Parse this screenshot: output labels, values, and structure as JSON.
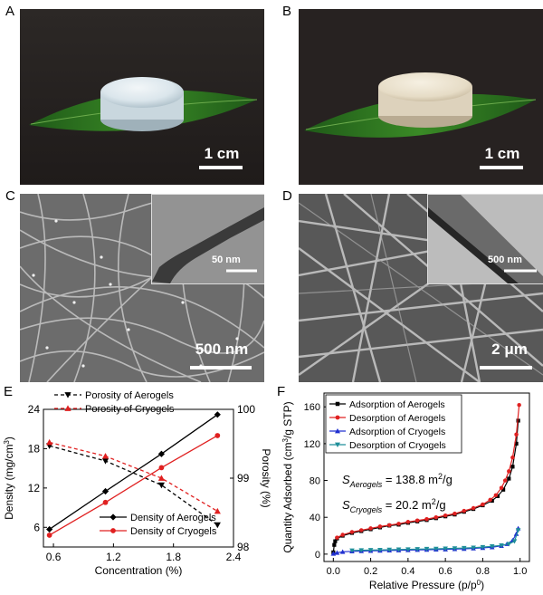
{
  "panels": {
    "A": {
      "letter": "A",
      "scale": "1 cm"
    },
    "B": {
      "letter": "B",
      "scale": "1 cm"
    },
    "C": {
      "letter": "C",
      "scale": "500 nm",
      "inset_scale": "50 nm"
    },
    "D": {
      "letter": "D",
      "scale": "2 μm",
      "inset_scale": "500 nm"
    },
    "E": {
      "letter": "E"
    },
    "F": {
      "letter": "F"
    }
  },
  "chart_data": [
    {
      "type": "line",
      "panel": "E",
      "xlabel": "Concentration (%)",
      "ylabel_left": "Density (mg/cm",
      "ylabel_left_sup": "3",
      "ylabel_left_end": ")",
      "ylabel_right": "Porosity (%)",
      "x_ticks": [
        "0.6",
        "1.2",
        "1.8",
        "2.4"
      ],
      "y_left_ticks": [
        "6",
        "12",
        "18",
        "24"
      ],
      "y_right_ticks": [
        "98",
        "99",
        "100"
      ],
      "xlim": [
        0.5,
        2.4
      ],
      "ylim_left": [
        3,
        24
      ],
      "ylim_right": [
        98,
        100
      ],
      "x": [
        0.56,
        1.12,
        1.68,
        2.24
      ],
      "series": [
        {
          "name": "Porosity of Aerogels",
          "axis": "right",
          "style": "dashed",
          "color": "#000000",
          "marker": "triangle-down",
          "values": [
            99.47,
            99.25,
            98.9,
            98.32
          ]
        },
        {
          "name": "Porosity of Cryogels",
          "axis": "right",
          "style": "dashed",
          "color": "#e02020",
          "marker": "triangle-up",
          "values": [
            99.52,
            99.32,
            99.0,
            98.52
          ]
        },
        {
          "name": "Density of Aerogels",
          "axis": "left",
          "style": "solid",
          "color": "#000000",
          "marker": "diamond",
          "values": [
            5.7,
            11.5,
            17.2,
            23.2
          ]
        },
        {
          "name": "Density of Cryogels",
          "axis": "left",
          "style": "solid",
          "color": "#e02020",
          "marker": "circle",
          "values": [
            4.8,
            9.8,
            15.1,
            20.0
          ]
        }
      ]
    },
    {
      "type": "line",
      "panel": "F",
      "xlabel": "Relative Pressure (p/p",
      "xlabel_sup": "0",
      "xlabel_end": ")",
      "ylabel": "Quantity Adsorbed (cm",
      "ylabel_sup": "3",
      "ylabel_end": "/g STP)",
      "x_ticks": [
        "0.0",
        "0.2",
        "0.4",
        "0.6",
        "0.8",
        "1.0"
      ],
      "y_ticks": [
        "0",
        "40",
        "80",
        "120",
        "160"
      ],
      "xlim": [
        -0.05,
        1.05
      ],
      "ylim": [
        -8,
        175
      ],
      "annotations": [
        {
          "prefix": "S",
          "sub": "Aerogels",
          "value": " = 138.8 m",
          "sup": "2",
          "unit": "/g"
        },
        {
          "prefix": "S",
          "sub": "Cryogels",
          "value": " = 20.2 m",
          "sup": "2",
          "unit": "/g"
        }
      ],
      "series": [
        {
          "name": "Adsorption of Aerogels",
          "color": "#000000",
          "marker": "square",
          "x": [
            0.0,
            0.005,
            0.01,
            0.02,
            0.05,
            0.1,
            0.15,
            0.2,
            0.25,
            0.3,
            0.35,
            0.4,
            0.45,
            0.5,
            0.55,
            0.6,
            0.65,
            0.7,
            0.75,
            0.8,
            0.85,
            0.88,
            0.91,
            0.94,
            0.96,
            0.98,
            0.99
          ],
          "y": [
            2,
            10,
            14,
            17,
            20,
            23,
            25,
            27,
            29,
            31,
            32,
            34,
            35.5,
            37,
            39,
            41,
            43,
            46,
            49,
            53,
            58,
            63,
            70,
            82,
            95,
            120,
            145
          ]
        },
        {
          "name": "Desorption of Aerogels",
          "color": "#e02020",
          "marker": "circle",
          "x": [
            0.995,
            0.98,
            0.96,
            0.94,
            0.92,
            0.9,
            0.87,
            0.84,
            0.8,
            0.75,
            0.7,
            0.65,
            0.6,
            0.55,
            0.5,
            0.45,
            0.4,
            0.35,
            0.3,
            0.25,
            0.2,
            0.15,
            0.1,
            0.05,
            0.02
          ],
          "y": [
            162,
            130,
            105,
            90,
            80,
            72,
            64,
            59,
            54,
            50,
            47,
            44,
            42,
            40,
            38,
            36.5,
            35,
            33,
            31.5,
            30,
            28,
            26,
            24,
            21,
            18
          ]
        },
        {
          "name": "Adsorption of Cryogels",
          "color": "#2030d0",
          "marker": "triangle-up",
          "x": [
            0.0,
            0.02,
            0.05,
            0.1,
            0.15,
            0.2,
            0.25,
            0.3,
            0.35,
            0.4,
            0.45,
            0.5,
            0.55,
            0.6,
            0.65,
            0.7,
            0.75,
            0.8,
            0.85,
            0.9,
            0.93,
            0.96,
            0.98,
            0.99
          ],
          "y": [
            0.5,
            1.5,
            2.5,
            3,
            3.3,
            3.6,
            3.8,
            4,
            4.2,
            4.4,
            4.6,
            4.8,
            5,
            5.2,
            5.5,
            5.8,
            6.2,
            6.8,
            7.5,
            9,
            11,
            15,
            22,
            28
          ]
        },
        {
          "name": "Desorption of Cryogels",
          "color": "#1f8f9a",
          "marker": "triangle-down",
          "x": [
            0.99,
            0.97,
            0.94,
            0.9,
            0.85,
            0.8,
            0.75,
            0.7,
            0.65,
            0.6,
            0.55,
            0.5,
            0.45,
            0.4,
            0.35,
            0.3,
            0.25,
            0.2,
            0.15,
            0.1
          ],
          "y": [
            26,
            14,
            11,
            9.5,
            8.5,
            7.6,
            7,
            6.6,
            6.3,
            6,
            5.8,
            5.6,
            5.4,
            5.2,
            5,
            4.8,
            4.6,
            4.4,
            4.2,
            4
          ]
        }
      ]
    }
  ]
}
